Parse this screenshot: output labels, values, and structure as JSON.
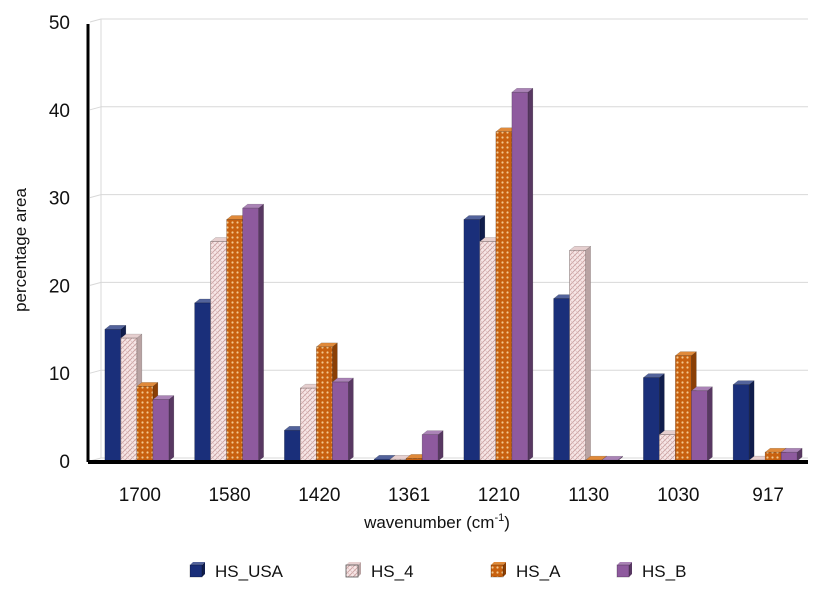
{
  "chart_data": {
    "type": "bar",
    "categories": [
      "1700",
      "1580",
      "1420",
      "1361",
      "1210",
      "1130",
      "1030",
      "917"
    ],
    "series": [
      {
        "name": "HS_USA",
        "color": "#1a2f7a",
        "pattern": "solid",
        "values": [
          15,
          18,
          3.5,
          0.2,
          27.5,
          18.5,
          9.5,
          8.7
        ]
      },
      {
        "name": "HS_4",
        "color": "#f2dcdc",
        "pattern": "crosshatch",
        "values": [
          14,
          25,
          8.3,
          0.2,
          25,
          24,
          3,
          0.1
        ]
      },
      {
        "name": "HS_A",
        "color": "#d06a1a",
        "pattern": "dotted",
        "values": [
          8.5,
          27.5,
          13,
          0.3,
          37.5,
          0.1,
          12,
          1
        ]
      },
      {
        "name": "HS_B",
        "color": "#8e5a9e",
        "pattern": "solid",
        "values": [
          7,
          28.8,
          9,
          3,
          42,
          0,
          8,
          1
        ]
      }
    ],
    "ylim": [
      0,
      50
    ],
    "yticks": [
      "0",
      "10",
      "20",
      "30",
      "40",
      "50"
    ],
    "xlabel": "wavenumber (cm",
    "xlabel_sup": "-1",
    "xlabel_end": ")",
    "ylabel": "percentage area",
    "grid": true,
    "legend_position": "bottom"
  }
}
